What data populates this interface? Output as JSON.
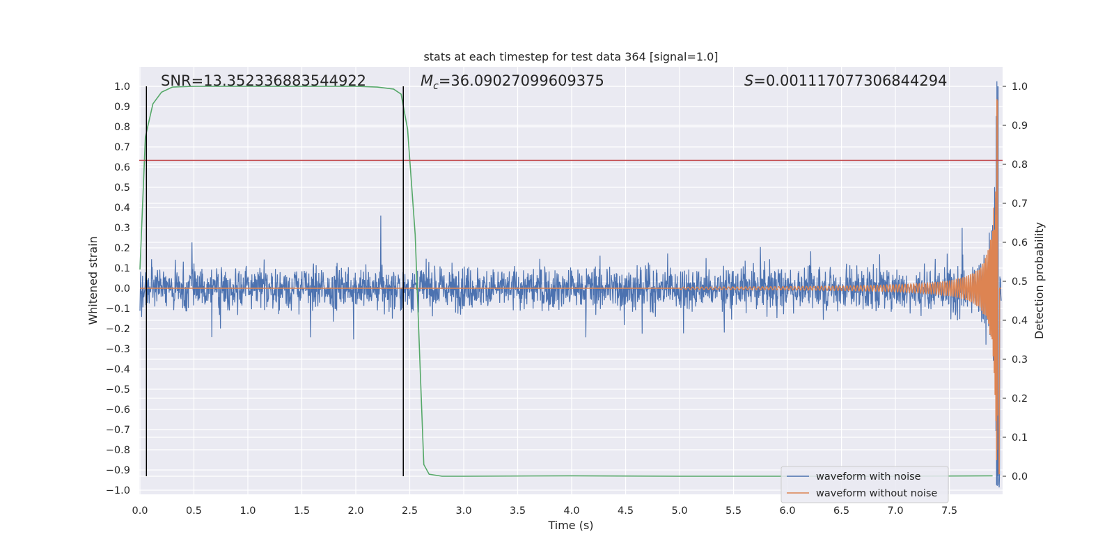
{
  "chart_data": {
    "type": "line",
    "title": "stats at each timestep for test data 364 [signal=1.0]",
    "xlabel": "Time (s)",
    "ylabel": "Whitened strain",
    "y2label": "Detection probability",
    "xlim": [
      0.0,
      7.98
    ],
    "ylim": [
      -1.05,
      1.05
    ],
    "y2lim": [
      -0.045,
      1.0
    ],
    "x_ticks": [
      "0.0",
      "0.5",
      "1.0",
      "1.5",
      "2.0",
      "2.5",
      "3.0",
      "3.5",
      "4.0",
      "4.5",
      "5.0",
      "5.5",
      "6.0",
      "6.5",
      "7.0",
      "7.5"
    ],
    "y_ticks": [
      "1.0",
      "0.9",
      "0.8",
      "0.7",
      "0.6",
      "0.5",
      "0.4",
      "0.3",
      "0.2",
      "0.1",
      "0.0",
      "−0.1",
      "−0.2",
      "−0.3",
      "−0.4",
      "−0.5",
      "−0.6",
      "−0.7",
      "−0.8",
      "−0.9",
      "−1.0"
    ],
    "y2_ticks": [
      "1.0",
      "0.9",
      "0.8",
      "0.7",
      "0.6",
      "0.5",
      "0.4",
      "0.3",
      "0.2",
      "0.1",
      "0.0"
    ],
    "grid": true,
    "legend_position": "lower-right",
    "annotations": {
      "snr": "SNR=13.352336883544922",
      "mc_symbol": "M",
      "mc_sub": "c",
      "mc_value": "=36.09027099609375",
      "s_symbol": "S",
      "s_value": "=0.001117077306844294"
    },
    "series": [
      {
        "name": "waveform with noise",
        "color": "#4c72b0",
        "noise_amplitude_typical": 0.2,
        "noise_peak": 0.38,
        "end_peak_max": 1.0,
        "end_peak_min": -0.93
      },
      {
        "name": "waveform without noise",
        "color": "#dd8452",
        "kind": "chirp",
        "amplitude_at_7.0s": 0.03,
        "amplitude_at_7.5s": 0.08,
        "peak_positive": 0.93,
        "peak_negative": -0.63,
        "merger_time": 7.95
      },
      {
        "name": "Detection probability",
        "axis": "right",
        "color": "#55a868",
        "points": [
          [
            0.0,
            0.53
          ],
          [
            0.05,
            0.87
          ],
          [
            0.12,
            0.955
          ],
          [
            0.2,
            0.985
          ],
          [
            0.3,
            0.998
          ],
          [
            0.5,
            1.0
          ],
          [
            1.0,
            1.0
          ],
          [
            2.0,
            1.0
          ],
          [
            2.2,
            0.998
          ],
          [
            2.35,
            0.993
          ],
          [
            2.42,
            0.98
          ],
          [
            2.48,
            0.89
          ],
          [
            2.55,
            0.62
          ],
          [
            2.6,
            0.25
          ],
          [
            2.63,
            0.03
          ],
          [
            2.68,
            0.005
          ],
          [
            2.8,
            0.0
          ],
          [
            3.0,
            0.0
          ],
          [
            4.0,
            0.001
          ],
          [
            5.0,
            0.0
          ],
          [
            6.0,
            0.0
          ],
          [
            7.0,
            0.0
          ],
          [
            7.9,
            0.001
          ]
        ]
      }
    ],
    "horizontal_line": {
      "y": 0.81,
      "color": "#c44e52"
    },
    "vertical_lines": [
      {
        "x": 0.06
      },
      {
        "x": 2.44
      }
    ]
  }
}
